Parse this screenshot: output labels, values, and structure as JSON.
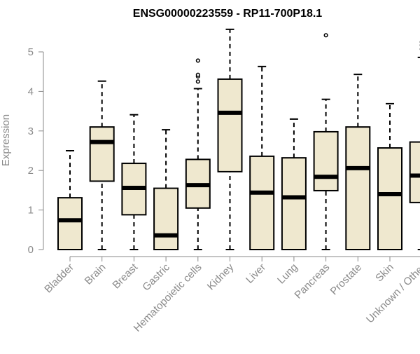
{
  "chart_data": {
    "type": "boxplot",
    "title": "ENSG00000223559 - RP11-700P18.1",
    "xlabel": "",
    "ylabel": "Expression",
    "ylim": [
      0,
      5.6
    ],
    "yticks": [
      0,
      1,
      2,
      3,
      4,
      5
    ],
    "colors": {
      "box_fill": "#efe8cf",
      "line": "#000000",
      "axis": "#8a8a8a",
      "text": "#8a8a8a",
      "title": "#000000"
    },
    "categories": [
      "Bladder",
      "Brain",
      "Breast",
      "Gastric",
      "Hematopoietic cells",
      "Kidney",
      "Liver",
      "Lung",
      "Pancreas",
      "Prostate",
      "Skin",
      "Unknown / Other"
    ],
    "boxes": [
      {
        "category": "Bladder",
        "min": 0,
        "q1": 0,
        "median": 0.74,
        "q3": 1.31,
        "max": 2.5,
        "outliers": []
      },
      {
        "category": "Brain",
        "min": 0,
        "q1": 1.73,
        "median": 2.72,
        "q3": 3.1,
        "max": 4.26,
        "outliers": []
      },
      {
        "category": "Breast",
        "min": 0,
        "q1": 0.88,
        "median": 1.56,
        "q3": 2.18,
        "max": 3.41,
        "outliers": []
      },
      {
        "category": "Gastric",
        "min": 0,
        "q1": 0,
        "median": 0.36,
        "q3": 1.55,
        "max": 3.03,
        "outliers": []
      },
      {
        "category": "Hematopoietic cells",
        "min": 0,
        "q1": 1.05,
        "median": 1.63,
        "q3": 2.28,
        "max": 4.07,
        "outliers": [
          4.25,
          4.38,
          4.42,
          4.78
        ]
      },
      {
        "category": "Kidney",
        "min": 0,
        "q1": 1.97,
        "median": 3.46,
        "q3": 4.31,
        "max": 5.57,
        "outliers": []
      },
      {
        "category": "Liver",
        "min": 0,
        "q1": 0,
        "median": 1.44,
        "q3": 2.36,
        "max": 4.63,
        "outliers": []
      },
      {
        "category": "Lung",
        "min": 0,
        "q1": 0,
        "median": 1.32,
        "q3": 2.32,
        "max": 3.3,
        "outliers": []
      },
      {
        "category": "Pancreas",
        "min": 0,
        "q1": 1.49,
        "median": 1.84,
        "q3": 2.98,
        "max": 3.8,
        "outliers": [
          5.42
        ]
      },
      {
        "category": "Prostate",
        "min": 0,
        "q1": 0,
        "median": 2.06,
        "q3": 3.1,
        "max": 4.43,
        "outliers": []
      },
      {
        "category": "Skin",
        "min": 0,
        "q1": 0,
        "median": 1.4,
        "q3": 2.57,
        "max": 3.69,
        "outliers": []
      },
      {
        "category": "Unknown / Other",
        "min": 0,
        "q1": 1.19,
        "median": 1.87,
        "q3": 2.72,
        "max": 4.86,
        "outliers": [
          5.07,
          5.17,
          5.25
        ]
      }
    ]
  }
}
